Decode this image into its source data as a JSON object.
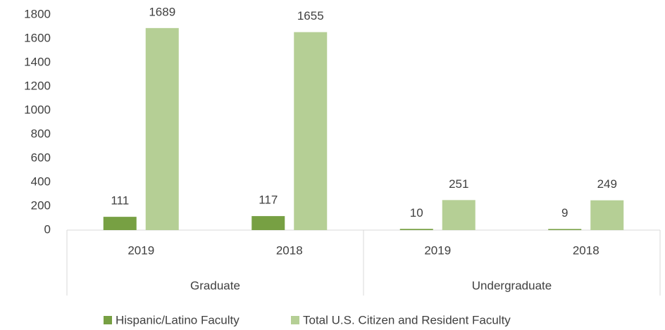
{
  "chart_data": {
    "type": "bar",
    "groups": [
      {
        "label": "Graduate",
        "categories": [
          "2019",
          "2018"
        ]
      },
      {
        "label": "Undergraduate",
        "categories": [
          "2019",
          "2018"
        ]
      }
    ],
    "series": [
      {
        "name": "Hispanic/Latino Faculty",
        "color": "#77a043",
        "values": [
          111,
          117,
          10,
          9
        ]
      },
      {
        "name": "Total U.S. Citizen and Resident Faculty",
        "color": "#b5cf95",
        "values": [
          1689,
          1655,
          251,
          249
        ]
      }
    ],
    "ylim": [
      0,
      1800
    ],
    "yticks": [
      0,
      200,
      400,
      600,
      800,
      1000,
      1200,
      1400,
      1600,
      1800
    ],
    "grid": false
  }
}
